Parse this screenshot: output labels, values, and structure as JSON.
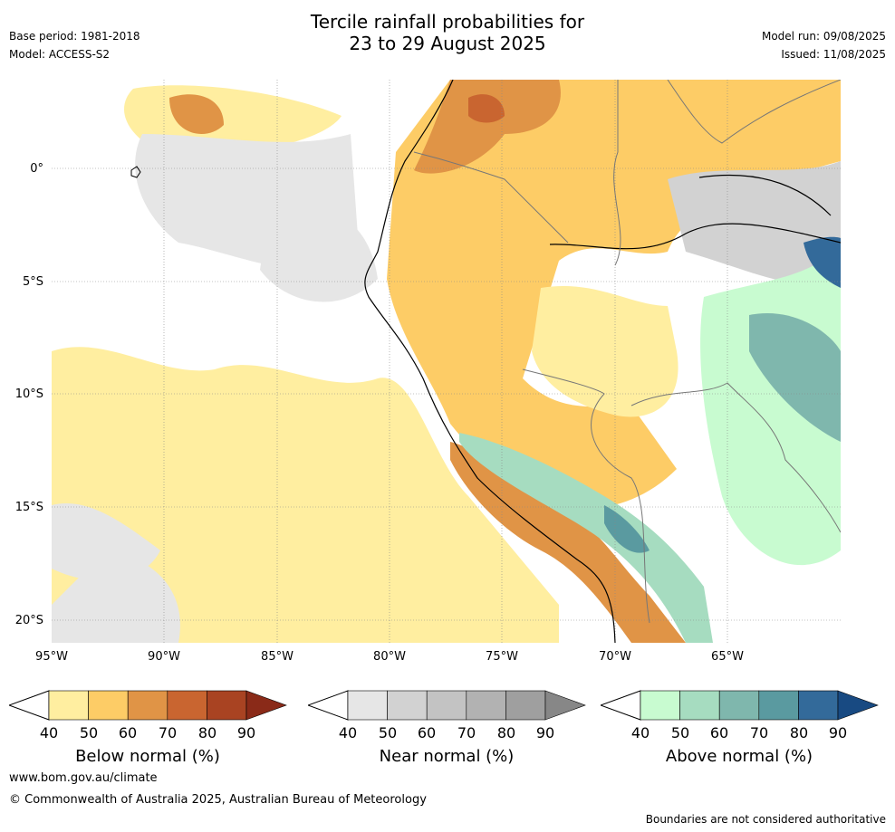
{
  "title_line1": "Tercile rainfall probabilities for",
  "title_line2": "23 to 29 August 2025",
  "base_period": "Base period: 1981-2018",
  "model": "Model: ACCESS-S2",
  "model_run": "Model run: 09/08/2025",
  "issued": "Issued: 11/08/2025",
  "lat_labels": [
    "0°",
    "5°S",
    "10°S",
    "15°S",
    "20°S"
  ],
  "lon_labels": [
    "95°W",
    "90°W",
    "85°W",
    "80°W",
    "75°W",
    "70°W",
    "65°W"
  ],
  "colorbars": [
    {
      "label": "Below normal (%)",
      "ticks": [
        "40",
        "50",
        "60",
        "70",
        "80",
        "90"
      ],
      "colors": [
        "#ffeea0",
        "#fdcc66",
        "#e09446",
        "#c96530",
        "#a94322",
        "#8a2a18"
      ]
    },
    {
      "label": "Near normal (%)",
      "ticks": [
        "40",
        "50",
        "60",
        "70",
        "80",
        "90"
      ],
      "colors": [
        "#e6e6e6",
        "#d2d2d2",
        "#c3c3c3",
        "#b2b2b2",
        "#9f9f9f",
        "#878787"
      ]
    },
    {
      "label": "Above normal (%)",
      "ticks": [
        "40",
        "50",
        "60",
        "70",
        "80",
        "90"
      ],
      "colors": [
        "#c8fbd0",
        "#a6dcc0",
        "#7fb7ad",
        "#5a9aa0",
        "#336a9a",
        "#184a82"
      ]
    }
  ],
  "website": "www.bom.gov.au/climate",
  "copyright": "© Commonwealth of Australia 2025, Australian Bureau of Meteorology",
  "disclaimer": "Boundaries are not considered authoritative"
}
